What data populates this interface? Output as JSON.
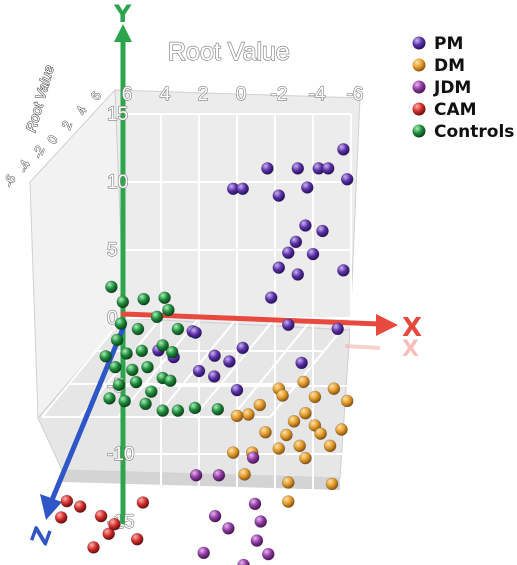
{
  "chart_data": {
    "type": "scatter",
    "projection": "3d",
    "axis_letters": {
      "x": "X",
      "y": "Y",
      "z": "Z"
    },
    "x_axis": {
      "label": "Root Value",
      "ticks": [
        "6",
        "4",
        "2",
        "0",
        "-2",
        "-4",
        "-6"
      ],
      "range": [
        6,
        -6
      ]
    },
    "y_axis": {
      "ticks": [
        "15",
        "10",
        "5",
        "0",
        "-5",
        "-10",
        "-15"
      ],
      "range": [
        -15,
        15
      ]
    },
    "z_axis": {
      "label": "Root Value",
      "ticks": [
        "-6",
        "-4",
        "-2",
        "0",
        "2",
        "4",
        "6"
      ],
      "range": [
        -6,
        6
      ]
    },
    "grid": true,
    "legend_position": "top-right",
    "series": [
      {
        "name": "PM",
        "color": "#5a2fa6",
        "points": [
          [
            0.2,
            9.5,
            0
          ],
          [
            -0.3,
            9.5,
            0
          ],
          [
            -1.6,
            11,
            0
          ],
          [
            -2.2,
            9,
            0
          ],
          [
            -3.2,
            11,
            0
          ],
          [
            -3.7,
            9.6,
            0
          ],
          [
            -4.3,
            11,
            0
          ],
          [
            -4.8,
            11,
            0
          ],
          [
            -5.6,
            12.4,
            0
          ],
          [
            -5.8,
            10.2,
            0
          ],
          [
            -2.7,
            4.8,
            0
          ],
          [
            -3.1,
            5.6,
            0
          ],
          [
            -3.6,
            6.8,
            0
          ],
          [
            -4.5,
            6.4,
            0
          ],
          [
            -2.2,
            3.7,
            0
          ],
          [
            -3.2,
            3.2,
            0
          ],
          [
            -1.8,
            1.5,
            0
          ],
          [
            -2.7,
            -0.5,
            0
          ],
          [
            -5.3,
            -0.8,
            0
          ],
          [
            -5.6,
            3.5,
            0
          ],
          [
            -4.0,
            4.7,
            0
          ],
          [
            -3.4,
            -3.3,
            0
          ],
          [
            2.0,
            -3.9,
            0
          ],
          [
            1.2,
            -4.3,
            0
          ],
          [
            0.0,
            -5.3,
            0
          ],
          [
            0.4,
            -3.2,
            0
          ],
          [
            -0.3,
            -2.2,
            0
          ],
          [
            5.2,
            -4.2,
            -1.5
          ],
          [
            4.4,
            -4.7,
            -1.5
          ],
          [
            3.4,
            -2.8,
            -1.5
          ],
          [
            2.6,
            -5.2,
            -2
          ],
          [
            3.6,
            -3.5,
            -2
          ]
        ]
      },
      {
        "name": "DM",
        "color": "#e39b2a",
        "points": [
          [
            -2.2,
            -5.2,
            0
          ],
          [
            -1.2,
            -6.4,
            0
          ],
          [
            -0.6,
            -7.1,
            0
          ],
          [
            0.0,
            -7.2,
            0
          ],
          [
            -1.5,
            -8.4,
            0
          ],
          [
            -2.6,
            -8.6,
            0
          ],
          [
            -3.0,
            -7.6,
            0
          ],
          [
            -3.6,
            -7.0,
            0
          ],
          [
            -4.1,
            -7.9,
            0
          ],
          [
            -4.4,
            -8.5,
            0
          ],
          [
            -3.3,
            -9.4,
            0
          ],
          [
            -4.9,
            -9.4,
            0
          ],
          [
            -5.5,
            -8.2,
            0
          ],
          [
            -5.8,
            -6.1,
            0
          ],
          [
            -5.1,
            -5.2,
            0
          ],
          [
            -4.1,
            -5.8,
            0
          ],
          [
            -3.5,
            -4.7,
            0
          ],
          [
            -2.4,
            -5.7,
            0
          ],
          [
            -3.6,
            -10.3,
            0
          ],
          [
            -2.2,
            -9.6,
            0
          ],
          [
            -0.8,
            -9.9,
            0
          ],
          [
            0.2,
            -9.9,
            0
          ],
          [
            -0.4,
            -11.5,
            0
          ],
          [
            -2.7,
            -12.1,
            0
          ],
          [
            -5.0,
            -12.2,
            0
          ],
          [
            -2.7,
            -13.5,
            0
          ]
        ]
      },
      {
        "name": "JDM",
        "color": "#8e3aa0",
        "points": [
          [
            -1.4,
            -5.5,
            5
          ],
          [
            -2.6,
            -5.5,
            5
          ],
          [
            -4.4,
            -4.2,
            5
          ],
          [
            -2.4,
            -8.5,
            5
          ],
          [
            -3.1,
            -9.4,
            5
          ],
          [
            -4.5,
            -7.6,
            5
          ],
          [
            -4.8,
            -8.9,
            5
          ],
          [
            -4.6,
            -10.3,
            5
          ],
          [
            -5.2,
            -11.3,
            5
          ],
          [
            -1.8,
            -11.2,
            5
          ],
          [
            -3.9,
            -12.1,
            5
          ]
        ]
      },
      {
        "name": "CAM",
        "color": "#d12c2c",
        "points": [
          [
            5.4,
            -7.4,
            5
          ],
          [
            5.7,
            -8.6,
            5
          ],
          [
            4.7,
            -7.8,
            5
          ],
          [
            3.6,
            -8.5,
            5
          ],
          [
            3.2,
            -9.8,
            5
          ],
          [
            2.9,
            -9.1,
            5
          ],
          [
            1.4,
            -7.5,
            5
          ],
          [
            1.7,
            -10.2,
            5
          ],
          [
            4.0,
            -10.8,
            5
          ]
        ]
      },
      {
        "name": "Controls",
        "color": "#1d8a3a",
        "points": [
          [
            5.3,
            2.4,
            1
          ],
          [
            4.2,
            2.6,
            1
          ],
          [
            3.1,
            2.7,
            1
          ],
          [
            5.4,
            0.8,
            1
          ],
          [
            4.5,
            0.4,
            1
          ],
          [
            3.5,
            1.3,
            1
          ],
          [
            2.9,
            1.8,
            1
          ],
          [
            2.4,
            0.4,
            1
          ],
          [
            5.6,
            -0.4,
            1
          ],
          [
            5.1,
            -1.4,
            1
          ],
          [
            4.3,
            -1.2,
            1
          ],
          [
            3.2,
            -0.8,
            1
          ],
          [
            2.7,
            -1.3,
            1
          ],
          [
            5.7,
            -2.4,
            1
          ],
          [
            4.8,
            -2.6,
            1
          ],
          [
            4.0,
            -2.4,
            1
          ],
          [
            3.2,
            -3.2,
            1
          ],
          [
            5.5,
            -3.7,
            1
          ],
          [
            4.6,
            -3.5,
            1
          ],
          [
            3.8,
            -4.2,
            1
          ],
          [
            2.8,
            -3.4,
            1
          ],
          [
            5.2,
            -4.9,
            1
          ],
          [
            4.1,
            -5.1,
            1
          ],
          [
            3.2,
            -5.6,
            1
          ],
          [
            6.0,
            -4.7,
            1
          ],
          [
            2.4,
            -5.6,
            1
          ],
          [
            1.5,
            -5.4,
            1
          ],
          [
            0.3,
            -5.5,
            1
          ],
          [
            6.2,
            -1.6,
            1
          ],
          [
            5.9,
            3.5,
            1
          ]
        ]
      }
    ]
  }
}
